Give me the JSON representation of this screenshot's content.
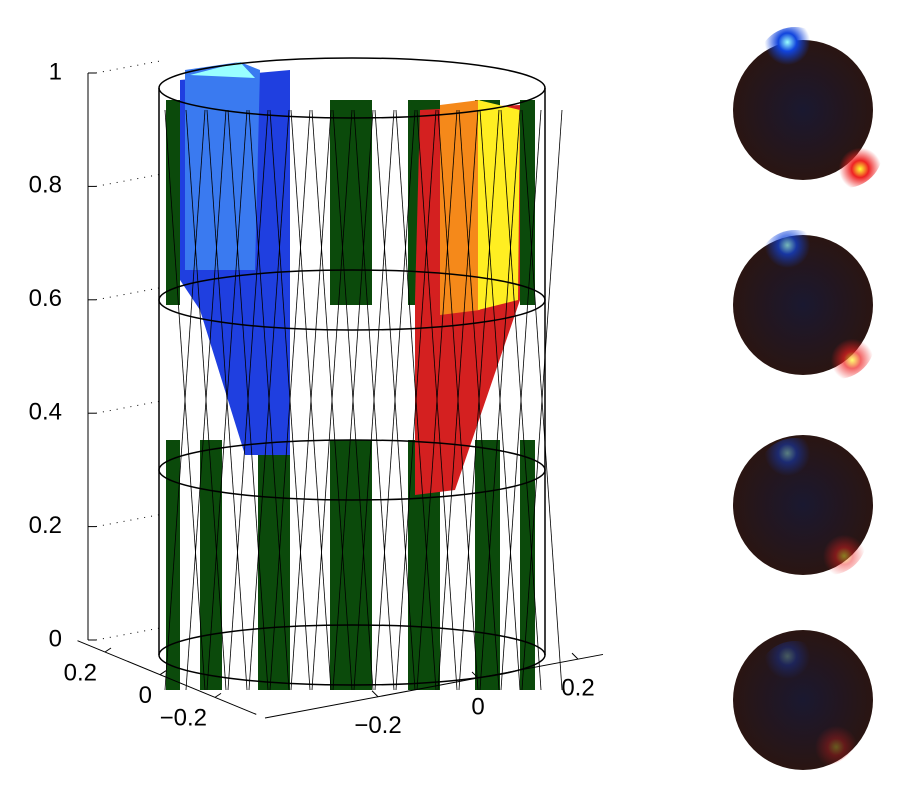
{
  "chart_data": {
    "type": "surface3d",
    "zlim": [
      0,
      1
    ],
    "zticks": [
      0,
      0.2,
      0.4,
      0.6,
      0.8,
      1
    ],
    "xlim": [
      -0.4,
      0.25
    ],
    "xticks": [
      {
        "value": -0.2,
        "label": "−0.2"
      },
      0,
      0.2
    ],
    "ylim": [
      -0.35,
      0.3
    ],
    "yticks": [
      0.2,
      0,
      {
        "value": -0.2,
        "label": "−0.2"
      }
    ],
    "grid": true
  }
}
